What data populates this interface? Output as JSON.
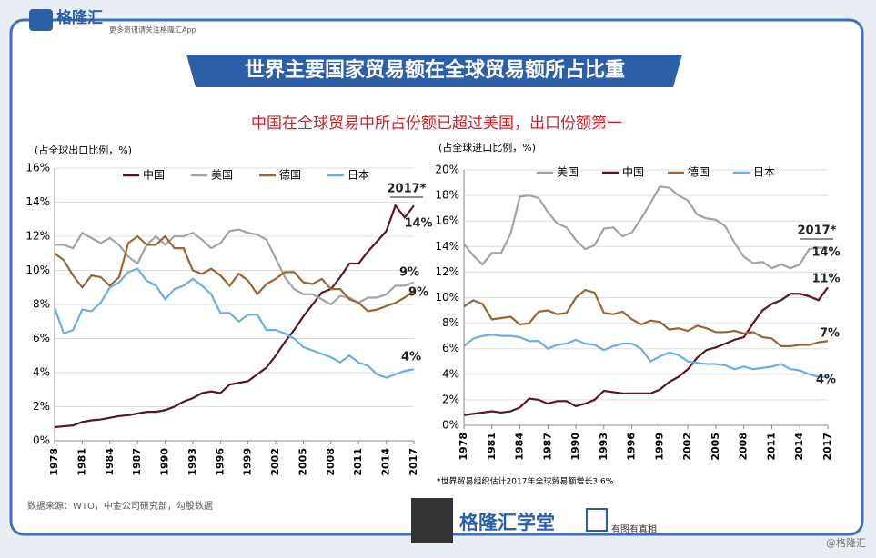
{
  "header": {
    "logo": "格隆汇",
    "tagline": "更多资讯请关注格隆汇App"
  },
  "title": "世界主要国家贸易额在全球贸易额所占比重",
  "subtitle": "中国在全球贸易中所占份额已超过美国，出口份额第一",
  "source": "数据来源：WTO，中金公司研究部，勾股数据",
  "footer": {
    "brand": "格隆汇学堂",
    "slogan": "有图有真相",
    "credit": "@格隆汇"
  },
  "chart_data": [
    {
      "type": "line",
      "ylabel": "(占全球出口比例，%)",
      "x": [
        1978,
        1979,
        1980,
        1981,
        1982,
        1983,
        1984,
        1985,
        1986,
        1987,
        1988,
        1989,
        1990,
        1991,
        1992,
        1993,
        1994,
        1995,
        1996,
        1997,
        1998,
        1999,
        2000,
        2001,
        2002,
        2003,
        2004,
        2005,
        2006,
        2007,
        2008,
        2009,
        2010,
        2011,
        2012,
        2013,
        2014,
        2015,
        2016,
        2017
      ],
      "xlim": [
        1978,
        2017
      ],
      "xticks": [
        1978,
        1981,
        1984,
        1987,
        1990,
        1993,
        1996,
        1999,
        2002,
        2005,
        2008,
        2011,
        2014,
        2017
      ],
      "ylim": [
        0,
        16
      ],
      "yticks": [
        {
          "value": 0,
          "label": "0%"
        },
        {
          "value": 2,
          "label": "2%"
        },
        {
          "value": 4,
          "label": "4%"
        },
        {
          "value": 6,
          "label": "6%"
        },
        {
          "value": 8,
          "label": "8%"
        },
        {
          "value": 10,
          "label": "10%"
        },
        {
          "value": 12,
          "label": "12%"
        },
        {
          "value": 14,
          "label": "14%"
        },
        {
          "value": 16,
          "label": "16%"
        }
      ],
      "series": [
        {
          "name": "中国",
          "color": "#5a1620",
          "values": [
            0.8,
            0.85,
            0.9,
            1.1,
            1.2,
            1.25,
            1.35,
            1.45,
            1.5,
            1.6,
            1.7,
            1.7,
            1.8,
            2.0,
            2.3,
            2.5,
            2.8,
            2.9,
            2.8,
            3.3,
            3.4,
            3.5,
            3.9,
            4.3,
            5.0,
            5.8,
            6.5,
            7.3,
            8.0,
            8.7,
            8.9,
            9.6,
            10.4,
            10.4,
            11.1,
            11.7,
            12.3,
            13.8,
            13.1,
            13.8
          ]
        },
        {
          "name": "美国",
          "color": "#a3a3a3",
          "values": [
            11.5,
            11.5,
            11.3,
            12.2,
            11.9,
            11.6,
            11.9,
            11.5,
            10.8,
            10.4,
            11.5,
            12.0,
            11.5,
            12.0,
            12.0,
            12.2,
            11.8,
            11.3,
            11.6,
            12.3,
            12.4,
            12.2,
            12.1,
            11.8,
            10.7,
            9.6,
            8.9,
            8.6,
            8.6,
            8.3,
            8.0,
            8.5,
            8.4,
            8.1,
            8.4,
            8.4,
            8.6,
            9.1,
            9.1,
            9.3
          ]
        },
        {
          "name": "德国",
          "color": "#9a6630",
          "values": [
            11.0,
            10.6,
            9.7,
            9.0,
            9.7,
            9.6,
            9.1,
            9.6,
            11.6,
            12.0,
            11.5,
            11.5,
            12.0,
            11.3,
            11.3,
            10.0,
            9.8,
            10.1,
            9.7,
            9.1,
            9.8,
            9.4,
            8.6,
            9.2,
            9.5,
            9.9,
            9.9,
            9.3,
            9.2,
            9.5,
            8.9,
            8.9,
            8.3,
            8.1,
            7.6,
            7.7,
            7.9,
            8.1,
            8.4,
            8.8
          ]
        },
        {
          "name": "日本",
          "color": "#6aaee6",
          "values": [
            7.8,
            6.3,
            6.5,
            7.7,
            7.6,
            8.1,
            9.0,
            9.3,
            9.9,
            10.1,
            9.4,
            9.1,
            8.3,
            8.9,
            9.1,
            9.5,
            9.1,
            8.6,
            7.5,
            7.5,
            7.0,
            7.4,
            7.4,
            6.5,
            6.5,
            6.3,
            6.0,
            5.5,
            5.3,
            5.1,
            4.9,
            4.6,
            5.0,
            4.6,
            4.4,
            3.9,
            3.7,
            3.9,
            4.1,
            4.2
          ]
        }
      ],
      "annotations": [
        "2017*",
        "14%",
        "9%",
        "9%",
        "4%"
      ]
    },
    {
      "type": "line",
      "ylabel": "(占全球进口比例，%)",
      "x": [
        1978,
        1979,
        1980,
        1981,
        1982,
        1983,
        1984,
        1985,
        1986,
        1987,
        1988,
        1989,
        1990,
        1991,
        1992,
        1993,
        1994,
        1995,
        1996,
        1997,
        1998,
        1999,
        2000,
        2001,
        2002,
        2003,
        2004,
        2005,
        2006,
        2007,
        2008,
        2009,
        2010,
        2011,
        2012,
        2013,
        2014,
        2015,
        2016,
        2017
      ],
      "xlim": [
        1978,
        2017
      ],
      "xticks": [
        1978,
        1981,
        1984,
        1987,
        1990,
        1993,
        1996,
        1999,
        2002,
        2005,
        2008,
        2011,
        2014,
        2017
      ],
      "ylim": [
        0,
        20
      ],
      "yticks": [
        {
          "value": 0,
          "label": "0%"
        },
        {
          "value": 2,
          "label": "2%"
        },
        {
          "value": 4,
          "label": "4%"
        },
        {
          "value": 6,
          "label": "6%"
        },
        {
          "value": 8,
          "label": "8%"
        },
        {
          "value": 10,
          "label": "10%"
        },
        {
          "value": 12,
          "label": "12%"
        },
        {
          "value": 14,
          "label": "14%"
        },
        {
          "value": 16,
          "label": "16%"
        },
        {
          "value": 18,
          "label": "18%"
        },
        {
          "value": 20,
          "label": "20%"
        }
      ],
      "series": [
        {
          "name": "美国",
          "color": "#a3a3a3",
          "values": [
            14.2,
            13.3,
            12.6,
            13.5,
            13.5,
            15.0,
            17.9,
            18.0,
            17.8,
            16.7,
            15.8,
            15.5,
            14.5,
            13.8,
            14.1,
            15.4,
            15.5,
            14.8,
            15.1,
            16.2,
            17.4,
            18.7,
            18.6,
            18.0,
            17.6,
            16.5,
            16.2,
            16.1,
            15.6,
            14.3,
            13.2,
            12.7,
            12.8,
            12.3,
            12.6,
            12.3,
            12.6,
            13.8,
            13.9,
            13.9
          ]
        },
        {
          "name": "中国",
          "color": "#5a1620",
          "values": [
            0.8,
            0.9,
            1.0,
            1.1,
            1.0,
            1.1,
            1.4,
            2.1,
            2.0,
            1.7,
            1.9,
            1.9,
            1.5,
            1.7,
            2.0,
            2.7,
            2.6,
            2.5,
            2.5,
            2.5,
            2.5,
            2.8,
            3.4,
            3.8,
            4.4,
            5.3,
            5.9,
            6.1,
            6.4,
            6.7,
            6.9,
            8.0,
            9.0,
            9.5,
            9.8,
            10.3,
            10.3,
            10.1,
            9.8,
            10.8
          ]
        },
        {
          "name": "德国",
          "color": "#9a6630",
          "values": [
            9.3,
            9.8,
            9.5,
            8.3,
            8.4,
            8.5,
            7.9,
            8.0,
            8.9,
            9.0,
            8.7,
            8.8,
            10.0,
            10.6,
            10.4,
            8.8,
            8.7,
            8.9,
            8.3,
            7.9,
            8.2,
            8.1,
            7.5,
            7.6,
            7.4,
            7.8,
            7.6,
            7.3,
            7.3,
            7.4,
            7.2,
            7.3,
            6.9,
            6.8,
            6.2,
            6.2,
            6.3,
            6.3,
            6.5,
            6.6
          ]
        },
        {
          "name": "日本",
          "color": "#6aaee6",
          "values": [
            6.2,
            6.8,
            7.0,
            7.1,
            7.0,
            7.0,
            6.9,
            6.6,
            6.6,
            6.0,
            6.3,
            6.4,
            6.7,
            6.4,
            6.3,
            5.9,
            6.2,
            6.4,
            6.4,
            6.0,
            5.0,
            5.4,
            5.7,
            5.5,
            5.0,
            4.9,
            4.8,
            4.8,
            4.7,
            4.4,
            4.6,
            4.4,
            4.5,
            4.6,
            4.8,
            4.4,
            4.3,
            4.0,
            3.8,
            3.8
          ]
        }
      ],
      "annotations": [
        "2017*",
        "14%",
        "11%",
        "7%",
        "4%"
      ],
      "note": "*世界贸易组织估计2017年全球贸易额增长3.6%"
    }
  ]
}
